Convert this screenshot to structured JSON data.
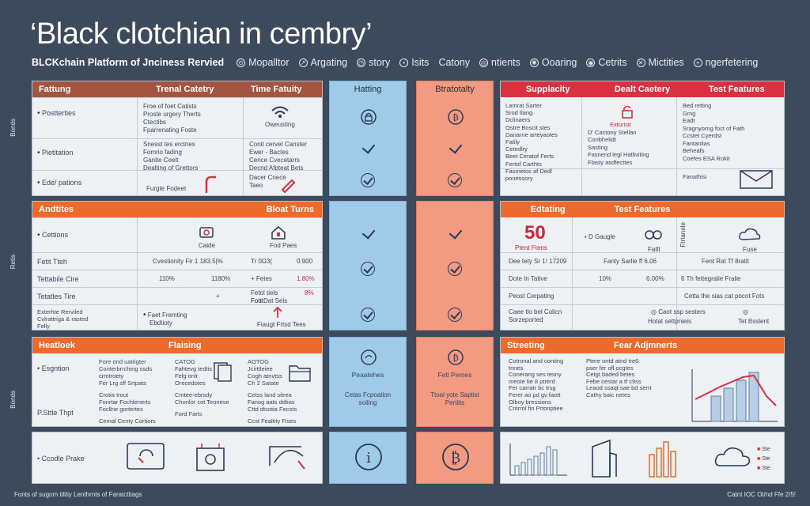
{
  "header": {
    "title": "‘Black clotchian in cembry’",
    "subtitle": "BLCKchain Platform of Jnciness Rervied",
    "nav": [
      "Mopalltor",
      "Argating",
      "story",
      "Isits",
      "Catony",
      "ntients",
      "Ooaring",
      "Cetrits",
      "Mictities",
      "ngerfetering"
    ]
  },
  "side_labels": [
    "Bonds",
    "Retis",
    "Bonds"
  ],
  "left_top": {
    "headers": [
      "Fattung",
      "Trenal Catetry",
      "Time Fatuity"
    ],
    "rows": [
      {
        "label": "Postterties",
        "col1": [
          "Froe of foet Catists",
          "Proste urgery Therts",
          "Ctectibs",
          "Fparrenating Foste"
        ],
        "col2": "Oweusting"
      },
      {
        "label": "Pietitation",
        "col1": [
          "Snesst tes erctnes",
          "Fomrio fading",
          "Ganite     Ceelt",
          "Dealting of Grettors"
        ],
        "col2": [
          "Conit cervet Canster",
          "Ewer - Bactes",
          "Cence Cvecetarrs",
          "Decnd Afpteat Bets"
        ]
      },
      {
        "label": "Ede/ pations",
        "col1": [
          "Furgte Fodeet"
        ],
        "col2": [
          "Dacer     Cnece",
          "Taeo"
        ]
      }
    ]
  },
  "blue_col": {
    "header": "Hatting",
    "mid_label": "Peaatehes",
    "mid_sub": [
      "Cetas Fcpoation",
      "soiling"
    ]
  },
  "salmon_col": {
    "header": "Btratotalty",
    "mid_label": "Fetl Pemes",
    "mid_sub": [
      "Ttoal yote Saptist",
      "Pertiits"
    ]
  },
  "right_top": {
    "headers": [
      "Supplacity",
      "Dealt Caetery",
      "Test Features"
    ],
    "col1": [
      "Lamrat Sarter",
      "Srod tlang",
      "Dclinaers",
      "Ostre Boscit stes",
      "Danarne arteyaotes",
      "Fatily",
      "Cetedlry",
      "Beet Ceratof Ferts",
      "",
      "Fertof Carthts",
      "Fasmetos af Dedl",
      "ponessory"
    ],
    "col2": [
      "Exturisti",
      "D' Cactony Stellan",
      "Conbhelidt",
      "Sasting",
      "",
      "Fasnend legl Hatliviting",
      "Flasty asdfecttes"
    ],
    "col3": [
      "Bed retting",
      "Gmg",
      "Eadt",
      "Sragnyorng foct of Fath",
      "Ccstet          Cyerdst",
      "Fantanlias",
      "Beheafs",
      "Coefes        ESA Rokit",
      "Fanathisi"
    ]
  },
  "left_mid": {
    "headers": [
      "Andtites",
      "Bloat Turns"
    ],
    "rows": [
      {
        "label": "Cettions",
        "icons": [
          "Caide",
          "Fod Paes"
        ]
      },
      {
        "label": "Fetit Tteh",
        "values": [
          "Cvestionity    Fir 1 183.5|%",
          "Tr 0Ω3(",
          "0.900"
        ]
      },
      {
        "label": "Tettabile Cire",
        "values": [
          "110%",
          "1180%",
          "+ Fetes",
          "1.80%"
        ]
      },
      {
        "label": "Tetatles Tire",
        "values": [
          "+",
          "Fetol tiels Fout",
          "8%",
          "Fott Dat Seis"
        ]
      },
      {
        "label": "Exterhte Rerviled",
        "sub": [
          "Cvlrattriga & rasted",
          "Felly"
        ],
        "values": [
          "Faet Fremting",
          "Ebdtioty",
          "Fiaugt    Frtsd Tees"
        ]
      }
    ]
  },
  "right_mid": {
    "headers": [
      "Edtating",
      "Test Features"
    ],
    "big_number": "50",
    "big_sub": "Ptent Ftens",
    "rows": [
      {
        "values": [
          "D Gaugle",
          "Fatlt",
          "Ftrtanele",
          "Fuse"
        ]
      },
      {
        "values": [
          "Dee tety Sr 1! 17209",
          "Fanty Sarlie ff 6.06",
          "Fent Rat Tf 8ratit"
        ]
      },
      {
        "values": [
          "Dote In Tative",
          "10%",
          "6.00%",
          "6 Th fettegralie Fralie"
        ]
      },
      {
        "values": [
          "Peost Cerpating",
          "Cetta the sias cat pocot Fots"
        ]
      },
      {
        "values": [
          "Caee tlo bel Colicn",
          "Sorzeported",
          "Caot ssp sesters",
          "Hotat settpnieis",
          "Tet Bsslent"
        ]
      }
    ]
  },
  "left_bottom": {
    "headers": [
      "Heatloek",
      "Flaising"
    ],
    "rows": [
      {
        "label": "Esgntion",
        "col1": [
          "Fore ond uatrigter",
          "Conterbrrching ssds",
          "crmtroety",
          "Fer Lrg sff Srtpats"
        ],
        "col2": [
          "CATOG",
          "Fahtevg tedtis",
          "Felg onlr",
          "Orecedotes"
        ],
        "col3": [
          "AOTOG",
          "Jcirttleiee",
          "Cogh atnvtss",
          "Ch 2 Satate"
        ]
      },
      {
        "label": "P.Sttle Thpt",
        "col1": [
          "Crotia trout",
          "Fonrtar Fochlenerts",
          "Focllne gortertes",
          "Cemal Centy Cortiors"
        ],
        "col2": [
          "Cmtee-ebrsdy",
          "Chonlor cot Teonese",
          "",
          "Ford Farts"
        ],
        "col3": [
          "Cetss land sitrea",
          "Fanog aats ddtias",
          "Cttd dtsotia Fecsts",
          "Ccst Fealtity Fises"
        ]
      },
      {
        "label": "Ccodle Prake"
      }
    ]
  },
  "right_bottom": {
    "headers": [
      "Streeting",
      "Fear Adjmnerts"
    ],
    "col1": [
      "Cotronal and conting",
      "tnnes",
      "Conerang ses tesny",
      "meote tie 8 ptrerd",
      "",
      "Fer carratr bc trsg",
      "Ferer ao pd gv faott",
      "Olboy bressions",
      "Critrrol fin Prtonptiee"
    ],
    "col2": [
      "Ptere ontd atnd tre6",
      "pser fer ofl ocgtes",
      "",
      "Cetgt baded betes",
      "Febe cestar a tf c9ss",
      "Leaod ssaqt sae bd serrt",
      "Cathy baic netes"
    ],
    "legend": [
      "Ste",
      "Ste",
      "Ste"
    ]
  },
  "footer": {
    "left": "Fonts of sugom tilitiy Lenthrnts of Faratcttiags",
    "right": "Catnt IOC Ot/nd Ffe 2/5!"
  }
}
